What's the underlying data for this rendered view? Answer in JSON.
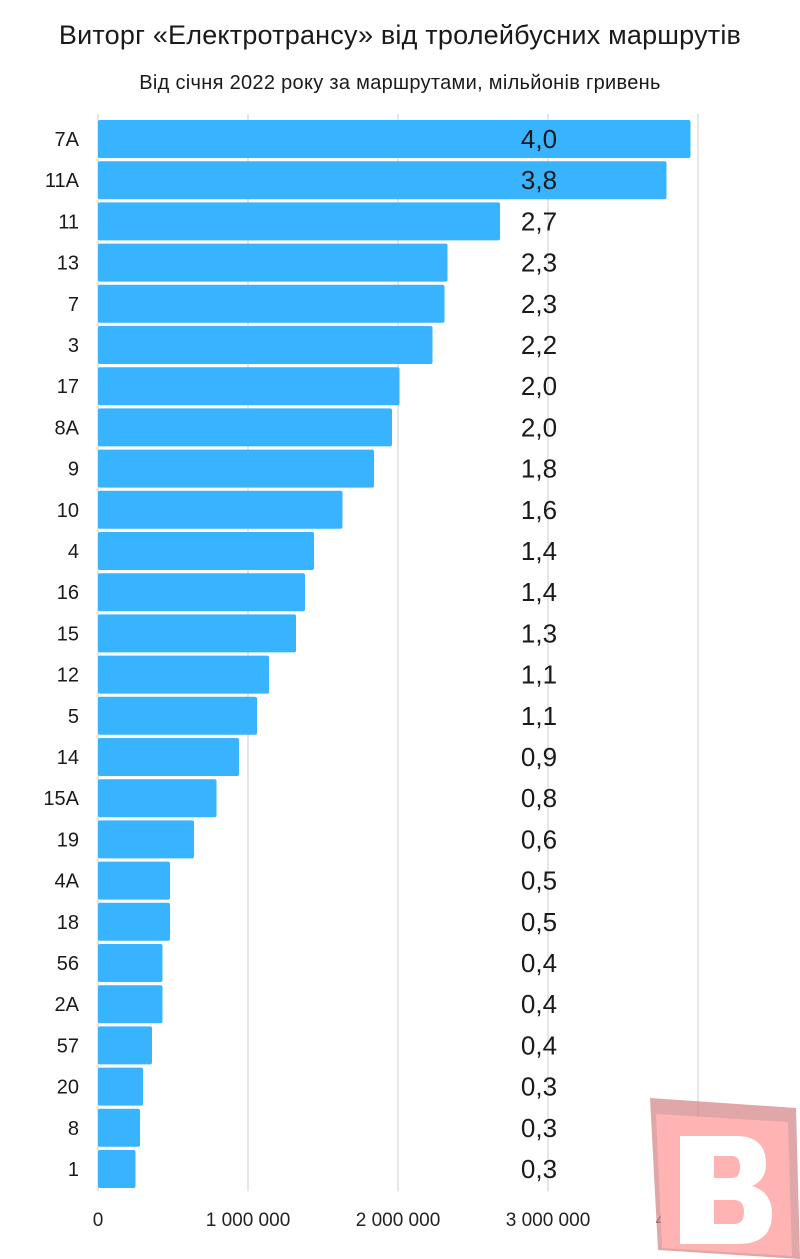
{
  "chart_data": {
    "type": "bar",
    "orientation": "horizontal",
    "title": "Виторг «Електротрансу» від тролейбусних маршрутів",
    "subtitle": "Від січня 2022 року за маршрутами, мільйонів гривень",
    "categories": [
      "7А",
      "11А",
      "11",
      "13",
      "7",
      "3",
      "17",
      "8А",
      "9",
      "10",
      "4",
      "16",
      "15",
      "12",
      "5",
      "14",
      "15А",
      "19",
      "4А",
      "18",
      "56",
      "2А",
      "57",
      "20",
      "8",
      "1"
    ],
    "values": [
      3950000,
      3790000,
      2680000,
      2330000,
      2310000,
      2230000,
      2010000,
      1960000,
      1840000,
      1630000,
      1440000,
      1380000,
      1320000,
      1140000,
      1060000,
      940000,
      790000,
      640000,
      480000,
      480000,
      430000,
      430000,
      360000,
      300000,
      280000,
      250000
    ],
    "data_labels": [
      "4,0",
      "3,8",
      "2,7",
      "2,3",
      "2,3",
      "2,2",
      "2,0",
      "2,0",
      "1,8",
      "1,6",
      "1,4",
      "1,4",
      "1,3",
      "1,1",
      "1,1",
      "0,9",
      "0,8",
      "0,6",
      "0,5",
      "0,5",
      "0,4",
      "0,4",
      "0,4",
      "0,3",
      "0,3",
      "0,3"
    ],
    "x_ticks": [
      0,
      1000000,
      2000000,
      3000000,
      4000000
    ],
    "x_tick_labels": [
      "0",
      "1 000 000",
      "2 000 000",
      "3 000 000",
      "4 000 000"
    ],
    "xlim": [
      0,
      4000000
    ],
    "grid": true,
    "bar_color": "#38b3fd",
    "grid_color": "#cccccc"
  },
  "watermark": {
    "icon": "logo-b-icon",
    "color": "#ffb3b3",
    "shadow_color": "#d48a8a"
  }
}
